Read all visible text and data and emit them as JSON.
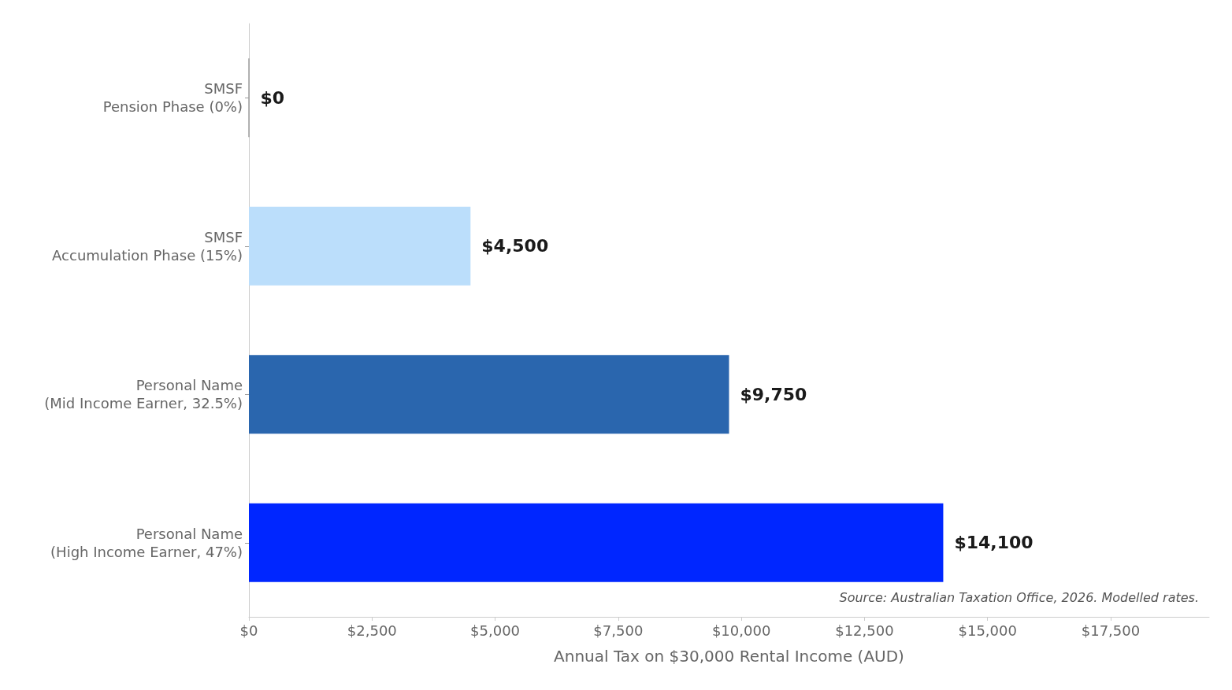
{
  "chart_data": {
    "type": "bar",
    "orientation": "horizontal",
    "categories": [
      "SMSF\nPension Phase (0%)",
      "SMSF\nAccumulation Phase (15%)",
      "Personal Name\n(Mid Income Earner, 32.5%)",
      "Personal Name\n(High Income Earner, 47%)"
    ],
    "values": [
      0,
      4500,
      9750,
      14100
    ],
    "colors": [
      "#9e9e9e",
      "#bbdefb",
      "#2a66ae",
      "#0026ff"
    ],
    "value_labels": [
      "$0",
      "$4,500",
      "$9,750",
      "$14,100"
    ],
    "xlabel": "Annual Tax on $30,000 Rental Income (AUD)",
    "xlim": [
      0,
      19500
    ],
    "xticks": [
      {
        "value": 0,
        "label": "$0"
      },
      {
        "value": 2500,
        "label": "$2,500"
      },
      {
        "value": 5000,
        "label": "$5,000"
      },
      {
        "value": 7500,
        "label": "$7,500"
      },
      {
        "value": 10000,
        "label": "$10,000"
      },
      {
        "value": 12500,
        "label": "$12,500"
      },
      {
        "value": 15000,
        "label": "$15,000"
      },
      {
        "value": 17500,
        "label": "$17,500"
      }
    ],
    "annotations": [
      "Source: Australian Taxation Office, 2026. Modelled rates."
    ]
  }
}
